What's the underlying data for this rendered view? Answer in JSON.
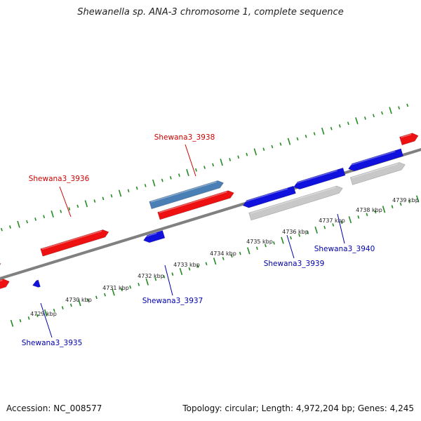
{
  "title": "Shewanella sp. ANA-3 chromosome 1, complete sequence",
  "accession": "Accession: NC_008577",
  "summary": "Topology: circular; Length: 4,972,204 bp; Genes: 4,245",
  "colors": {
    "forward_gene": "#ee1111",
    "reverse_gene": "#1111dd",
    "highlight_gene": "#4a7fb5",
    "pseudo_gene": "#c8c8c8",
    "tick": "#228b22",
    "backbone": "#808080",
    "label_forward": "#cc0000",
    "label_reverse": "#0000aa"
  },
  "ticks": [
    "4729 kbp",
    "4730 kbp",
    "4731 kbp",
    "4732 kbp",
    "4733 kbp",
    "4734 kbp",
    "4735 kbp",
    "4736 kbp",
    "4737 kbp",
    "4738 kbp",
    "4739 kbp"
  ],
  "genes": [
    {
      "name": "Shewana3_3935",
      "strand": "reverse"
    },
    {
      "name": "Shewana3_3936",
      "strand": "forward"
    },
    {
      "name": "Shewana3_3937",
      "strand": "reverse"
    },
    {
      "name": "Shewana3_3938",
      "strand": "forward"
    },
    {
      "name": "Shewana3_3939",
      "strand": "reverse"
    },
    {
      "name": "Shewana3_3940",
      "strand": "reverse"
    }
  ]
}
